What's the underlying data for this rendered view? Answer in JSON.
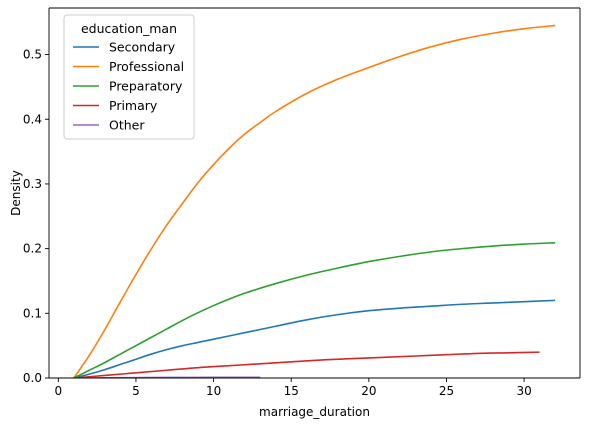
{
  "chart_data": {
    "type": "line",
    "xlabel": "marriage_duration",
    "ylabel": "Density",
    "xlim": [
      -0.6,
      33.6
    ],
    "ylim": [
      0,
      0.572
    ],
    "xticks": [
      0,
      5,
      10,
      15,
      20,
      25,
      30
    ],
    "yticks": [
      0.0,
      0.1,
      0.2,
      0.3,
      0.4,
      0.5
    ],
    "xtick_labels": [
      "0",
      "5",
      "10",
      "15",
      "20",
      "25",
      "30"
    ],
    "ytick_labels": [
      "0.0",
      "0.1",
      "0.2",
      "0.3",
      "0.4",
      "0.5"
    ],
    "grid": false,
    "legend": {
      "title": "education_man",
      "placement": "top-left"
    },
    "series": [
      {
        "name": "Secondary",
        "color": "#1f77b4",
        "x": [
          1,
          2,
          3,
          4,
          5,
          6,
          7,
          8,
          9,
          10,
          12,
          14,
          16,
          18,
          20,
          22,
          24,
          26,
          28,
          30,
          32
        ],
        "y": [
          0.0,
          0.006,
          0.013,
          0.021,
          0.029,
          0.037,
          0.044,
          0.05,
          0.055,
          0.06,
          0.07,
          0.08,
          0.09,
          0.098,
          0.104,
          0.108,
          0.111,
          0.114,
          0.116,
          0.118,
          0.12
        ]
      },
      {
        "name": "Professional",
        "color": "#ff7f0e",
        "x": [
          1,
          2,
          3,
          4,
          5,
          6,
          7,
          8,
          9,
          10,
          11,
          12,
          13,
          14,
          16,
          18,
          20,
          22,
          24,
          26,
          28,
          30,
          32
        ],
        "y": [
          0.0,
          0.035,
          0.075,
          0.118,
          0.16,
          0.2,
          0.237,
          0.27,
          0.302,
          0.33,
          0.355,
          0.377,
          0.395,
          0.412,
          0.44,
          0.462,
          0.48,
          0.497,
          0.512,
          0.524,
          0.533,
          0.54,
          0.545
        ]
      },
      {
        "name": "Preparatory",
        "color": "#2ca02c",
        "x": [
          1,
          2,
          3,
          4,
          5,
          6,
          7,
          8,
          9,
          10,
          11,
          12,
          14,
          16,
          18,
          20,
          22,
          24,
          26,
          28,
          30,
          32
        ],
        "y": [
          0.0,
          0.012,
          0.024,
          0.037,
          0.05,
          0.063,
          0.076,
          0.089,
          0.101,
          0.112,
          0.122,
          0.131,
          0.146,
          0.159,
          0.17,
          0.18,
          0.188,
          0.195,
          0.2,
          0.204,
          0.207,
          0.209
        ]
      },
      {
        "name": "Primary",
        "color": "#d62728",
        "x": [
          1,
          3,
          5,
          7,
          9,
          11,
          13,
          15,
          17,
          19,
          21,
          23,
          25,
          27,
          29,
          31
        ],
        "y": [
          0.0,
          0.004,
          0.008,
          0.012,
          0.016,
          0.019,
          0.022,
          0.025,
          0.028,
          0.03,
          0.032,
          0.034,
          0.036,
          0.038,
          0.039,
          0.04
        ]
      },
      {
        "name": "Other",
        "color": "#9467bd",
        "x": [
          1,
          4,
          7,
          10,
          13
        ],
        "y": [
          0.0,
          0.0005,
          0.0008,
          0.001,
          0.001
        ]
      }
    ]
  }
}
